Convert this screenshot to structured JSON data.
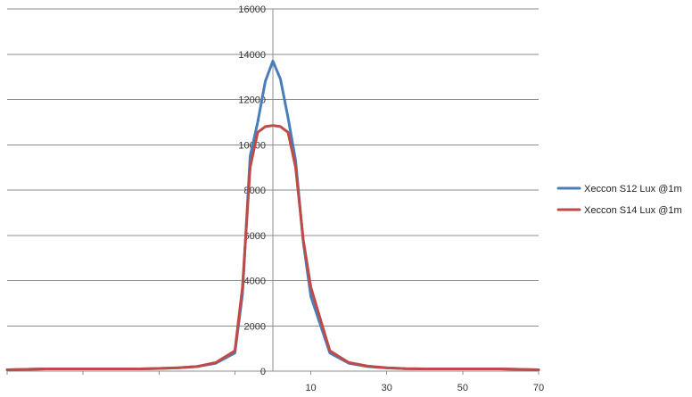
{
  "chart_data": {
    "type": "line",
    "title": "",
    "xlabel": "",
    "ylabel": "",
    "xlim": [
      -70,
      70
    ],
    "ylim": [
      0,
      16000
    ],
    "y_ticks": [
      0,
      2000,
      4000,
      6000,
      8000,
      10000,
      12000,
      14000,
      16000
    ],
    "y_tick_labels": [
      "0",
      "2000",
      "4000",
      "6000",
      "8000",
      "10000",
      "12000",
      "14000",
      "16000"
    ],
    "x_tick_labels": [
      {
        "value": 10,
        "label": "10"
      },
      {
        "value": 30,
        "label": "30"
      },
      {
        "value": 50,
        "label": "50"
      },
      {
        "value": 70,
        "label": "70"
      }
    ],
    "grid": "horizontal",
    "legend_position": "right",
    "x": [
      -70,
      -65,
      -60,
      -55,
      -50,
      -45,
      -40,
      -35,
      -30,
      -25,
      -20,
      -15,
      -10,
      -8,
      -6,
      -4,
      -2,
      0,
      2,
      4,
      6,
      8,
      10,
      15,
      20,
      25,
      30,
      35,
      40,
      45,
      50,
      55,
      60,
      65,
      70
    ],
    "series": [
      {
        "name": "Xeccon S12 Lux @1m",
        "color": "#4a7ebb",
        "values": [
          60,
          80,
          100,
          100,
          100,
          100,
          100,
          100,
          120,
          150,
          200,
          350,
          800,
          3400,
          9500,
          11000,
          12800,
          13700,
          12900,
          11200,
          9300,
          5700,
          3300,
          800,
          350,
          200,
          140,
          110,
          100,
          100,
          100,
          100,
          100,
          80,
          60
        ]
      },
      {
        "name": "Xeccon S14 Lux @1m",
        "color": "#be4b48",
        "values": [
          60,
          80,
          100,
          100,
          100,
          100,
          100,
          100,
          120,
          150,
          200,
          380,
          900,
          3700,
          9000,
          10550,
          10800,
          10850,
          10800,
          10550,
          9000,
          5800,
          3700,
          900,
          380,
          220,
          150,
          110,
          100,
          100,
          100,
          100,
          100,
          80,
          60
        ]
      }
    ]
  }
}
